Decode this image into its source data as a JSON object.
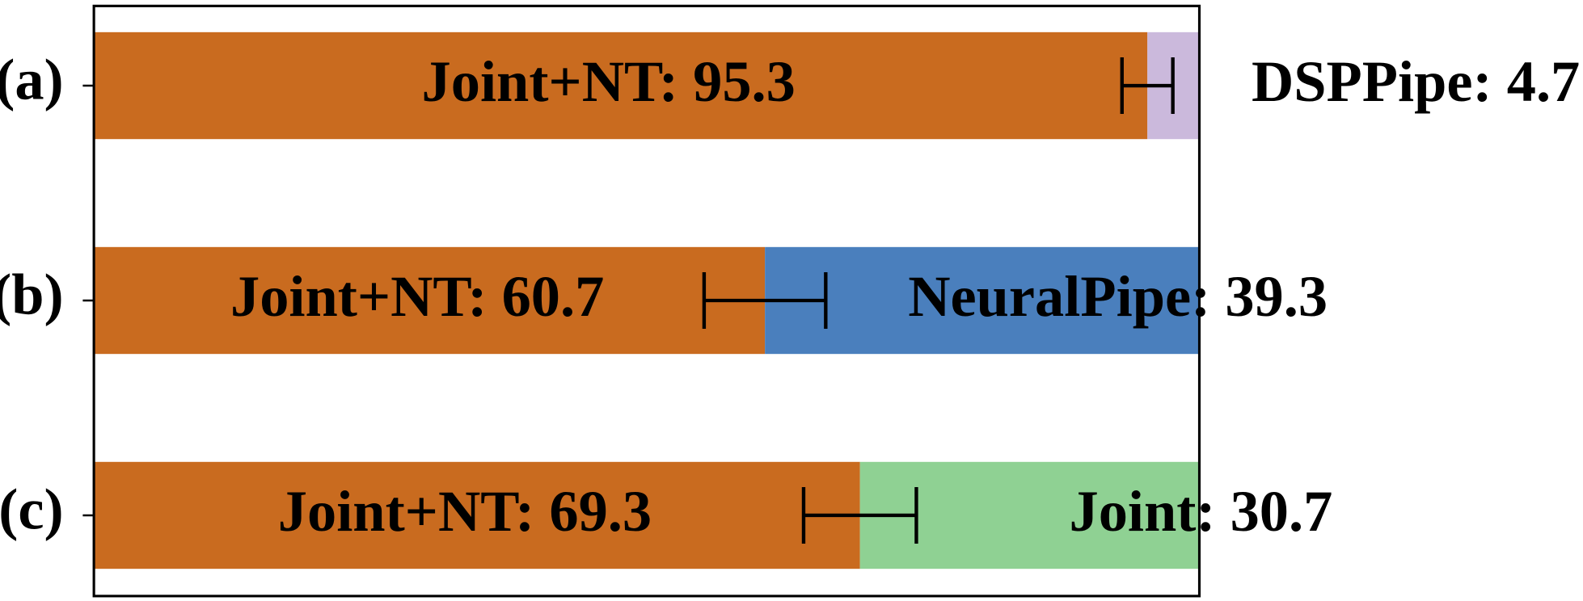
{
  "chart_data": {
    "type": "stacked_barh",
    "categories": [
      "(a)",
      "(b)",
      "(c)"
    ],
    "xlim": [
      0,
      100
    ],
    "series": [
      {
        "color": "#c96b1f",
        "values": [
          95.3,
          60.7,
          69.3
        ],
        "errors": [
          2.3,
          5.5,
          5.1
        ],
        "value_labels": [
          "Joint+NT: 95.3",
          "Joint+NT: 60.7",
          "Joint+NT: 69.3"
        ]
      },
      {
        "colors": [
          "#cbb9dc",
          "#4a7fbd",
          "#8fd193"
        ],
        "values": [
          4.7,
          39.3,
          30.7
        ],
        "value_labels": [
          "DSPPipe: 4.7",
          "NeuralPipe: 39.3",
          "Joint: 30.7"
        ]
      }
    ]
  }
}
